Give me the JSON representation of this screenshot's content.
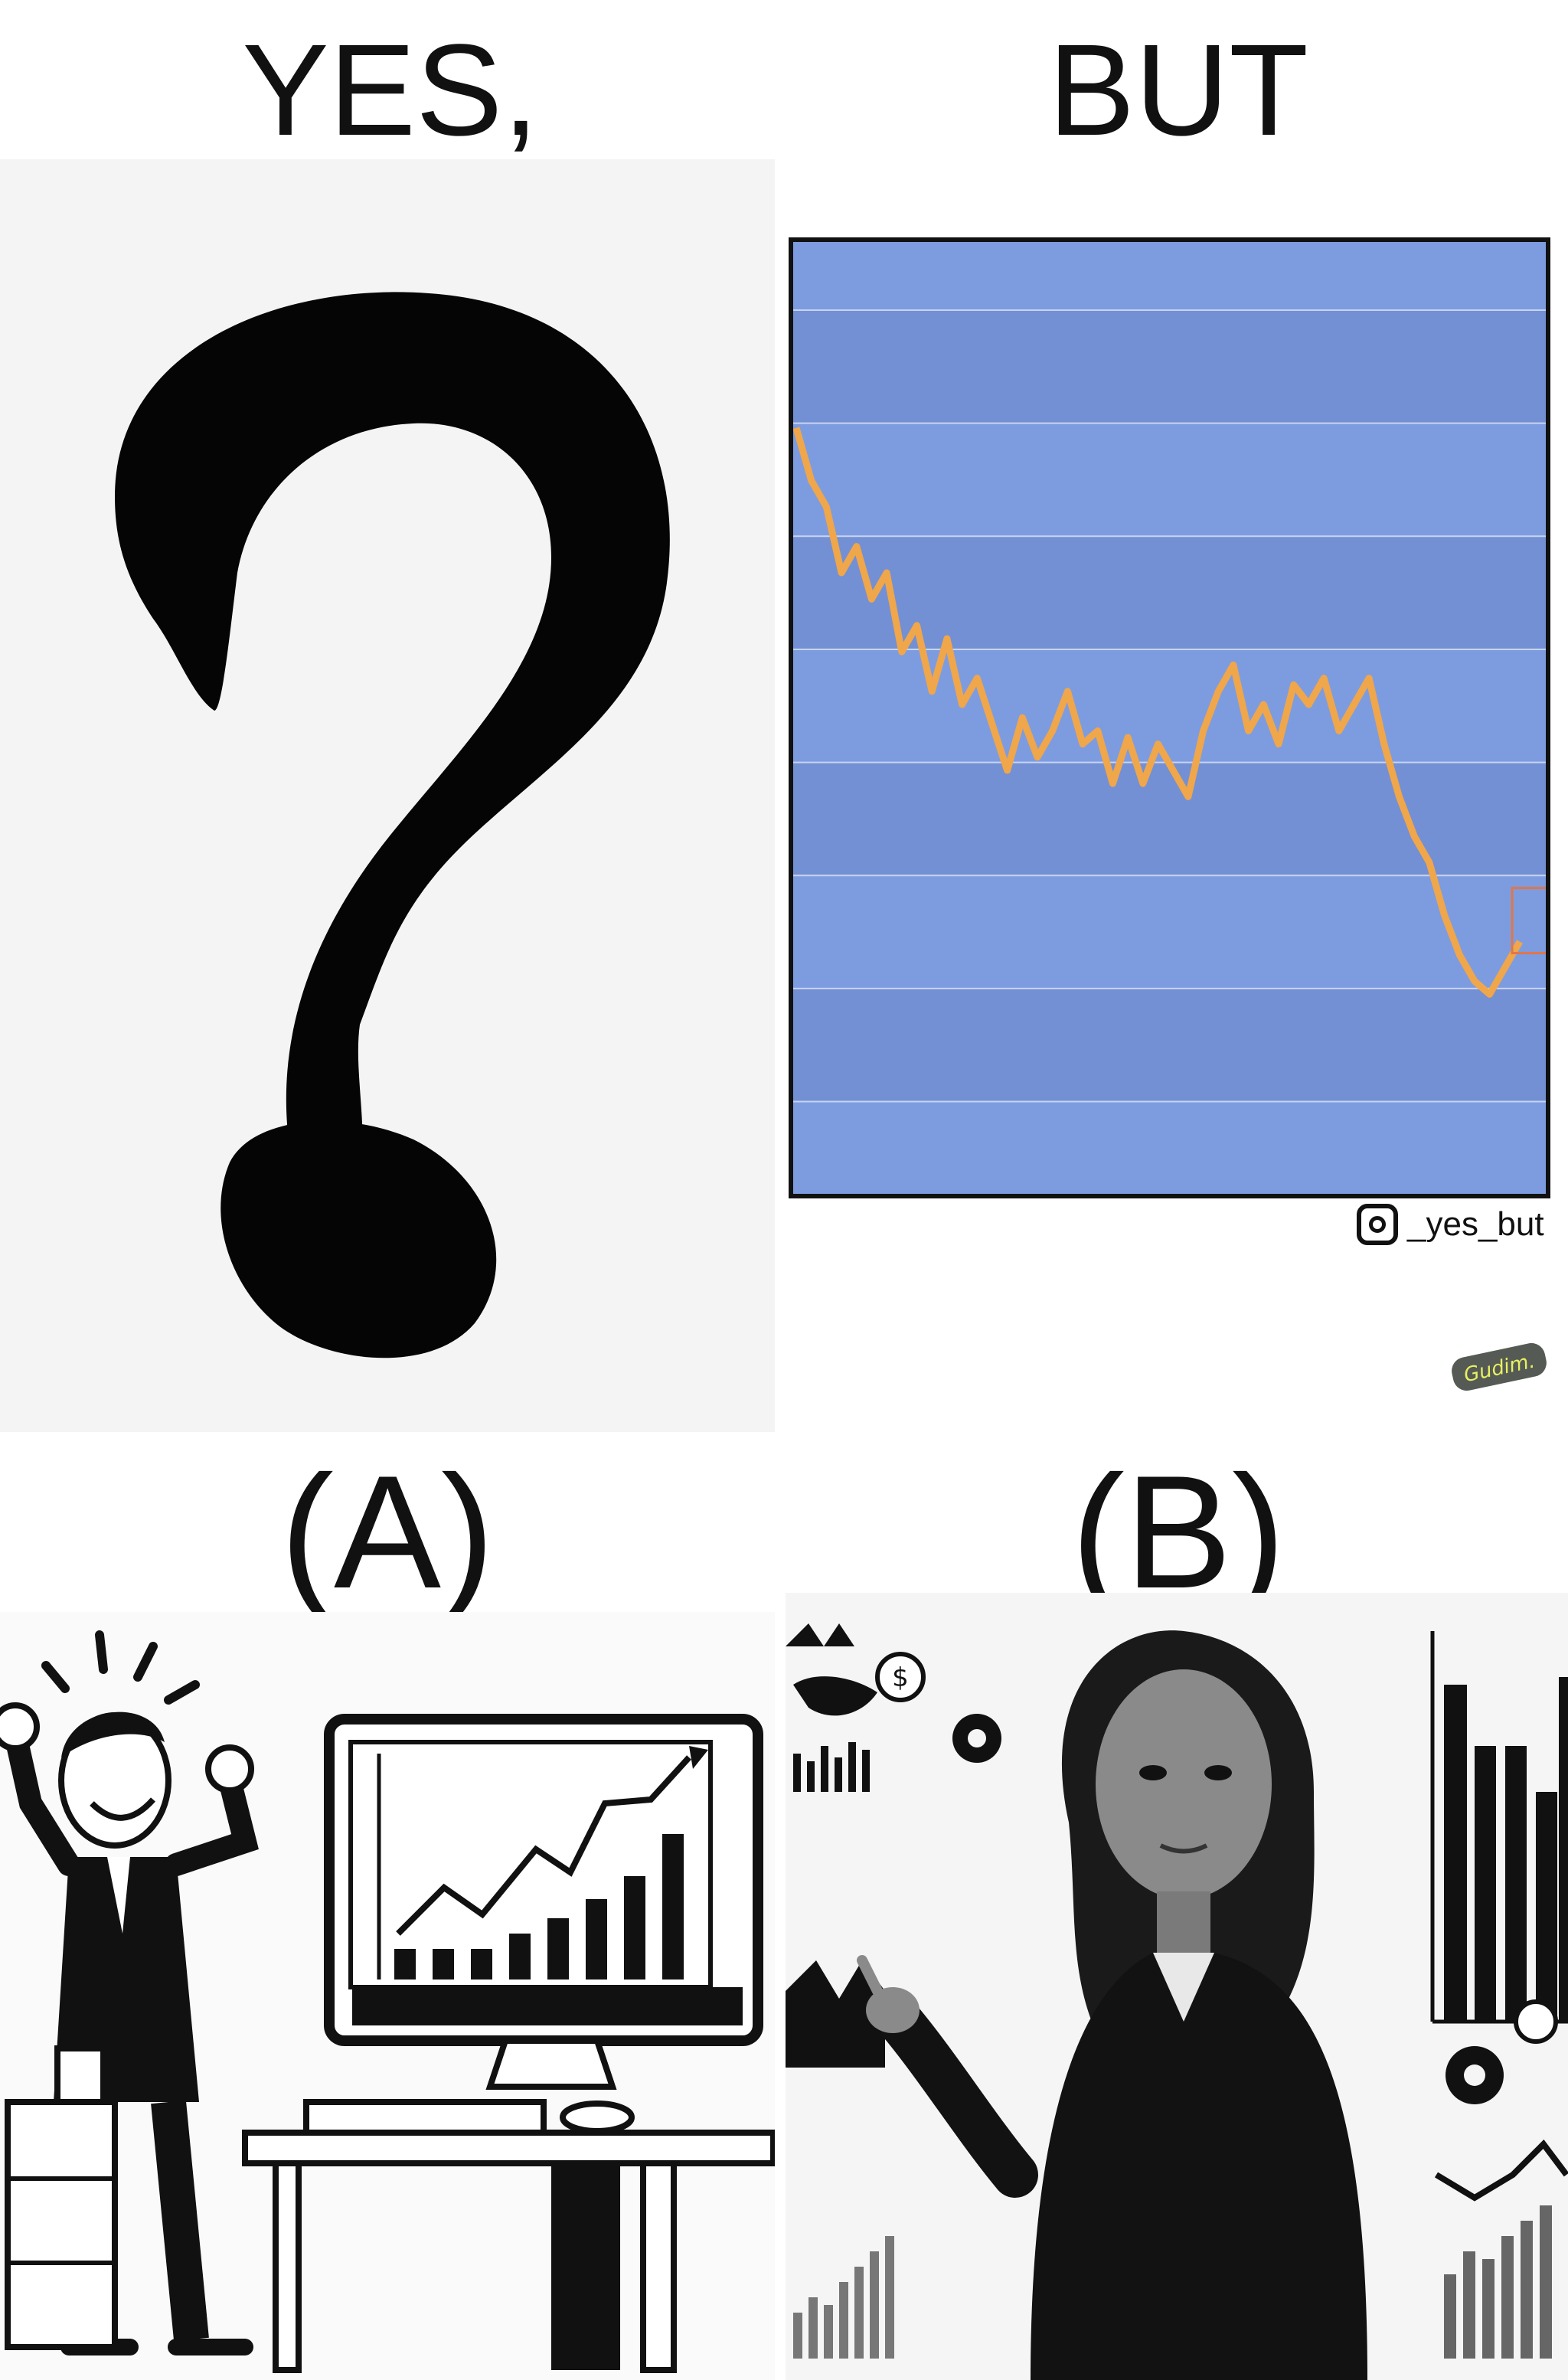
{
  "headings": {
    "left": "YES,",
    "right": "BUT"
  },
  "watermark": {
    "handle": "_yes_but",
    "icon": "instagram-icon",
    "signature": "Gudim."
  },
  "options": {
    "a": "(A)",
    "b": "(B)"
  },
  "colors": {
    "chart_bg": "#7d9ce0",
    "chart_band_dark": "#7390d4",
    "line": "#f0a64a",
    "frame": "#111111"
  },
  "chart_data": {
    "type": "line",
    "title": "",
    "xlabel": "",
    "ylabel": "",
    "grid": true,
    "series": [
      {
        "values": [
          92,
          84,
          80,
          70,
          74,
          66,
          70,
          58,
          62,
          52,
          60,
          50,
          54,
          47,
          40,
          48,
          42,
          46,
          52,
          44,
          46,
          38,
          45,
          38,
          44,
          40,
          36,
          46,
          52,
          56,
          46,
          50,
          44,
          53,
          50,
          54,
          46,
          50,
          54,
          44,
          36,
          30,
          26,
          18,
          12,
          8,
          6,
          10,
          14
        ]
      }
    ]
  }
}
